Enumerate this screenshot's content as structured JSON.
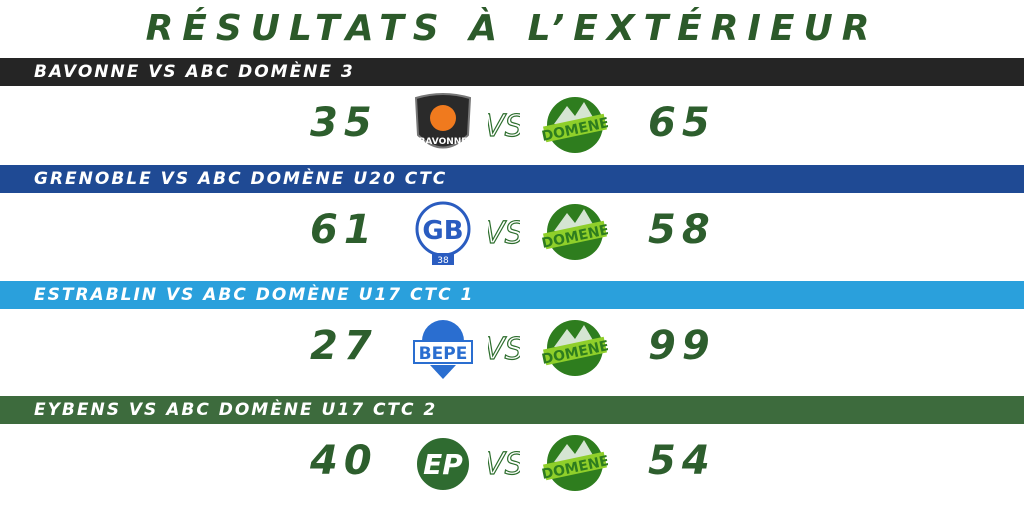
{
  "title": "RÉSULTATS À L’EXTÉRIEUR",
  "matches": [
    {
      "label": "BAVONNE VS ABC DOMÈNE 3",
      "home_score": "35",
      "away_score": "65",
      "banner_color": "#252525",
      "home_logo": "bavonne-logo"
    },
    {
      "label": "GRENOBLE VS ABC DOMÈNE U20 CTC",
      "home_score": "61",
      "away_score": "58",
      "banner_color": "#1f4a94",
      "home_logo": "grenoble-logo"
    },
    {
      "label": "ESTRABLIN VS ABC DOMÈNE U17 CTC 1",
      "home_score": "27",
      "away_score": "99",
      "banner_color": "#2aa0dc",
      "home_logo": "bepe-logo"
    },
    {
      "label": "EYBENS VS ABC DOMÈNE U17 CTC 2",
      "home_score": "40",
      "away_score": "54",
      "banner_color": "#3d6b3d",
      "home_logo": "eybens-logo"
    }
  ]
}
